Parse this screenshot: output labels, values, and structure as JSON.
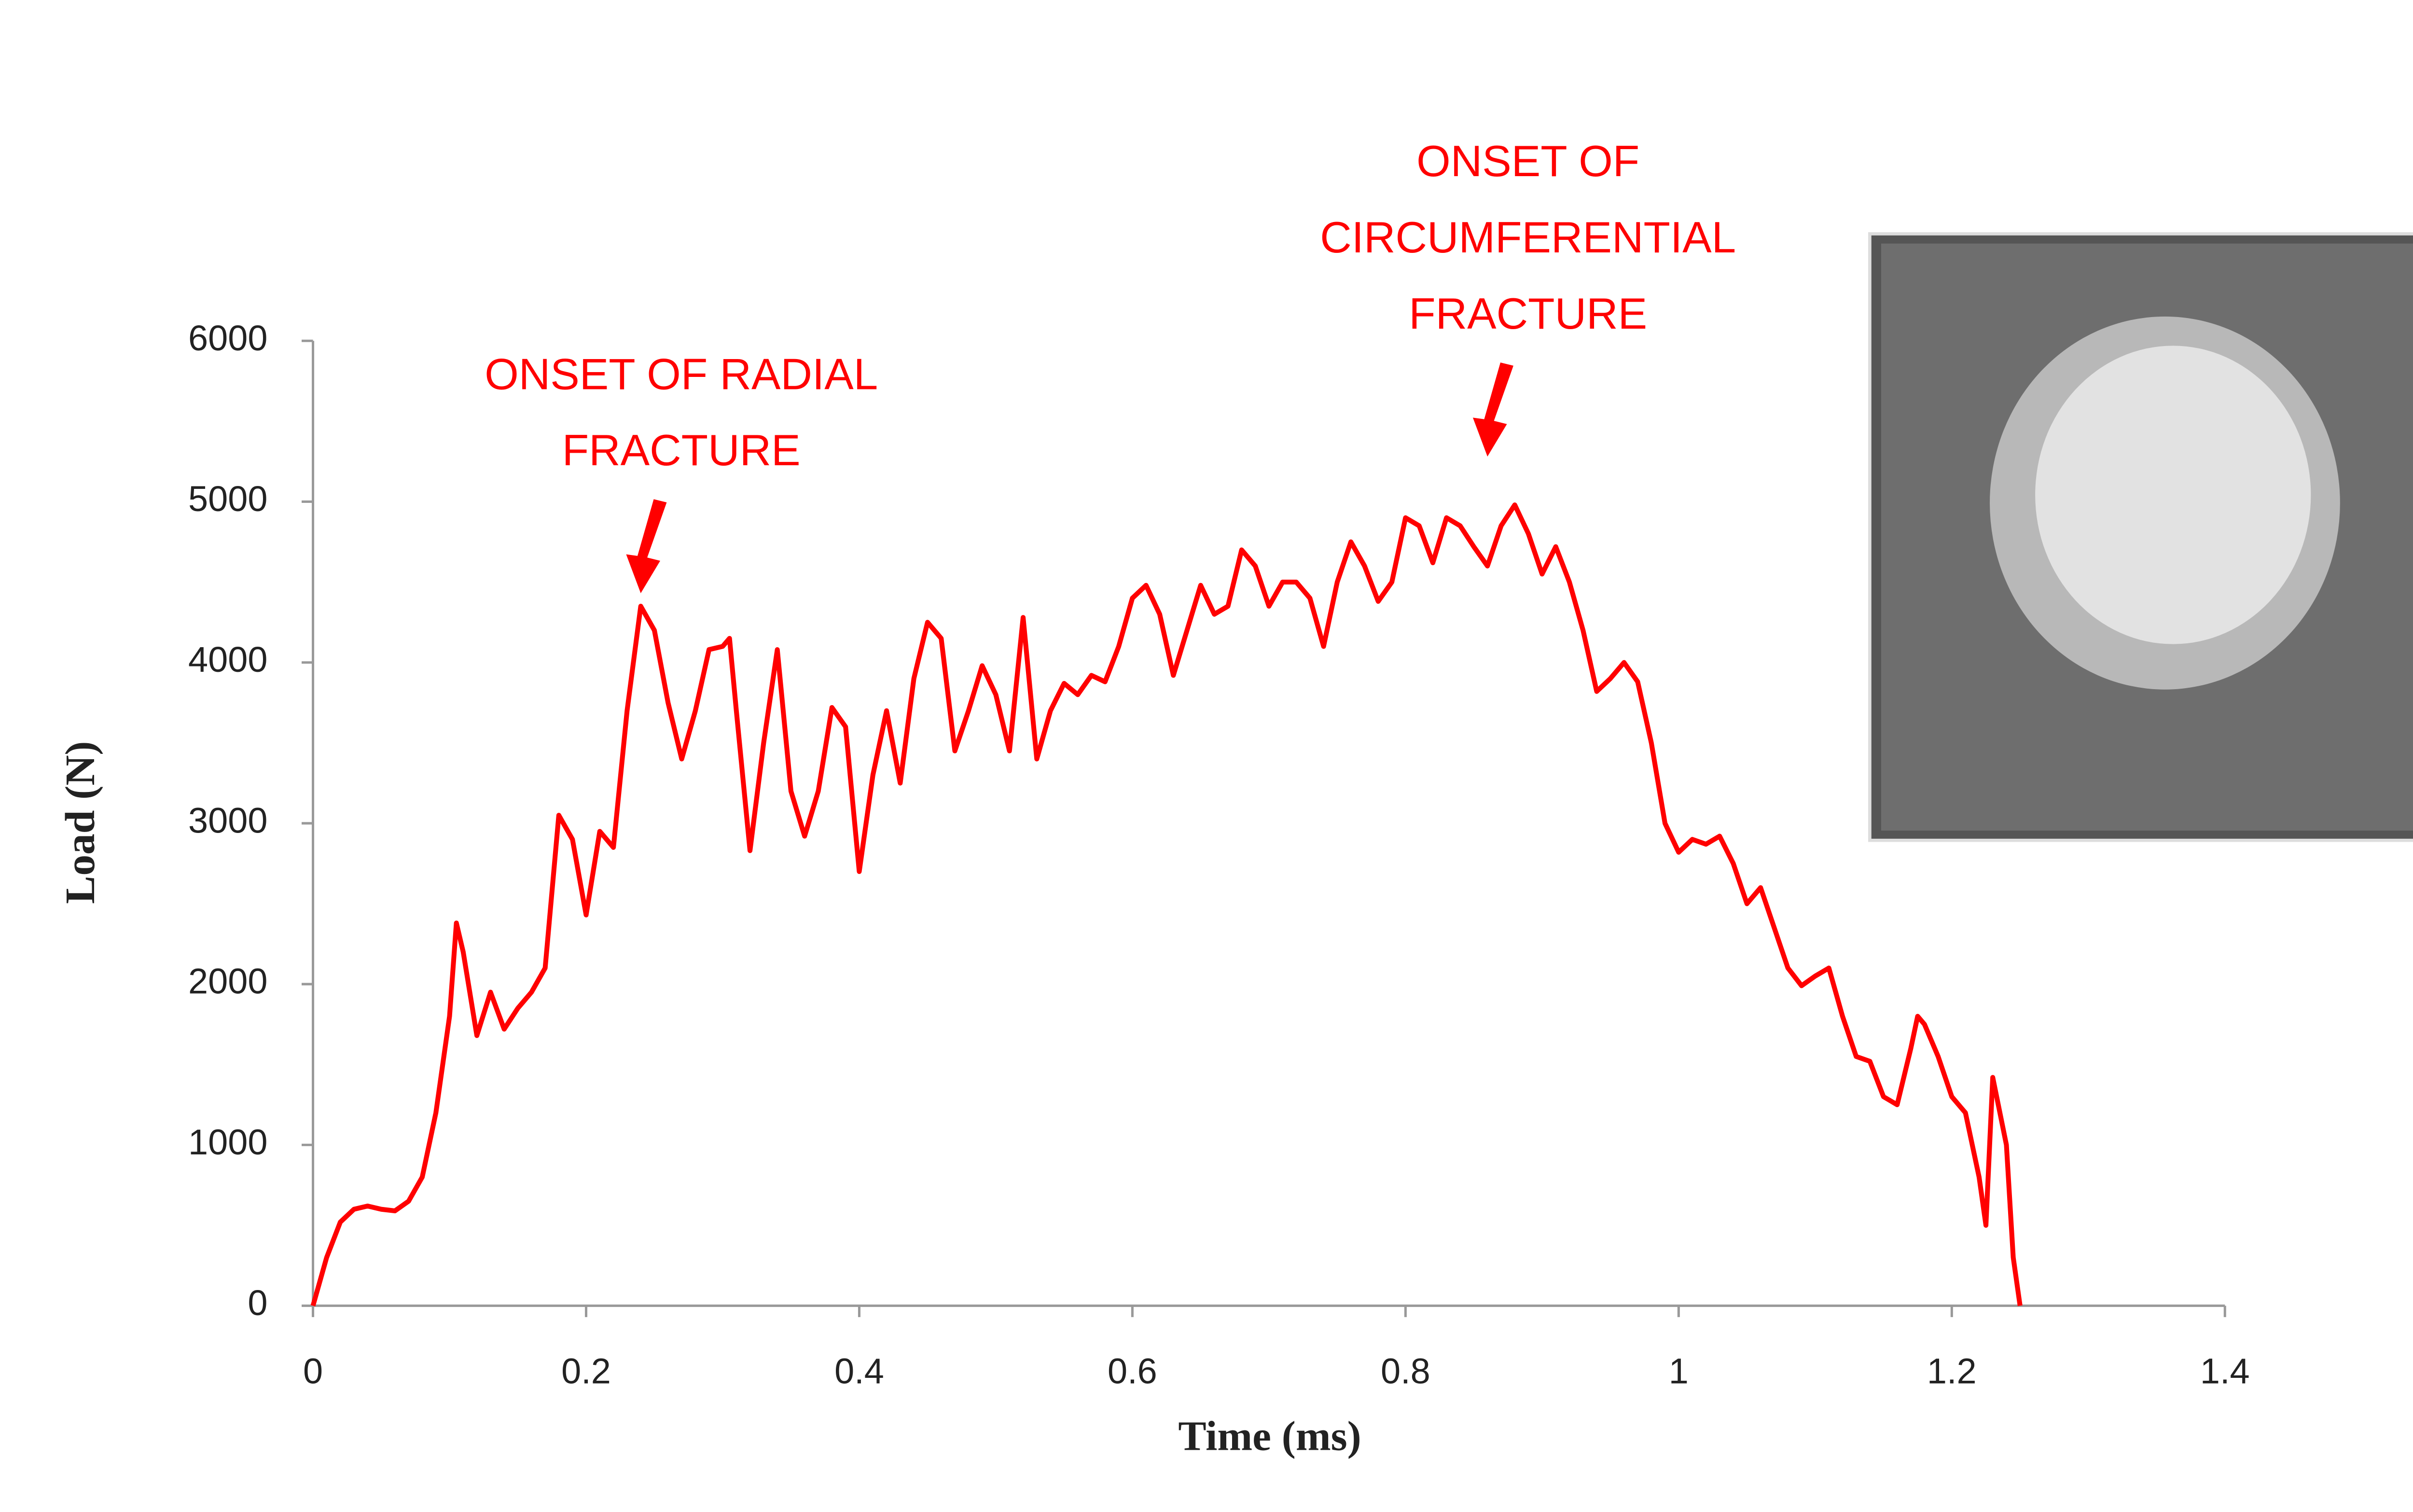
{
  "chart_data": {
    "type": "line",
    "xlabel": "Time (ms)",
    "ylabel": "Load (N)",
    "xlim": [
      0,
      1.4
    ],
    "xticks": [
      0,
      0.2,
      0.4,
      0.6,
      0.8,
      1,
      1.2,
      1.4
    ],
    "ylim": [
      0,
      6000
    ],
    "yticks": [
      0,
      1000,
      2000,
      3000,
      4000,
      5000,
      6000
    ],
    "grid": false,
    "annotations": [
      {
        "lines": [
          "ONSET OF RADIAL",
          "FRACTURE"
        ],
        "x": 0.24,
        "y": 4350
      },
      {
        "lines": [
          "ONSET OF",
          "CIRCUMFERENTIAL",
          "FRACTURE"
        ],
        "x": 0.86,
        "y": 5200
      }
    ],
    "series": [
      {
        "color": "#ff0000",
        "x": [
          0,
          0.01,
          0.02,
          0.03,
          0.04,
          0.05,
          0.06,
          0.07,
          0.08,
          0.09,
          0.1,
          0.105,
          0.11,
          0.12,
          0.13,
          0.14,
          0.15,
          0.16,
          0.17,
          0.18,
          0.19,
          0.2,
          0.21,
          0.22,
          0.23,
          0.24,
          0.25,
          0.26,
          0.27,
          0.28,
          0.29,
          0.3,
          0.305,
          0.31,
          0.32,
          0.33,
          0.34,
          0.35,
          0.36,
          0.37,
          0.38,
          0.39,
          0.4,
          0.41,
          0.42,
          0.43,
          0.44,
          0.45,
          0.46,
          0.47,
          0.48,
          0.49,
          0.5,
          0.51,
          0.52,
          0.53,
          0.54,
          0.55,
          0.56,
          0.57,
          0.58,
          0.59,
          0.6,
          0.61,
          0.62,
          0.63,
          0.64,
          0.65,
          0.66,
          0.67,
          0.68,
          0.69,
          0.7,
          0.71,
          0.72,
          0.73,
          0.74,
          0.75,
          0.76,
          0.77,
          0.78,
          0.79,
          0.8,
          0.81,
          0.82,
          0.83,
          0.84,
          0.85,
          0.86,
          0.87,
          0.88,
          0.89,
          0.9,
          0.91,
          0.92,
          0.93,
          0.94,
          0.95,
          0.96,
          0.97,
          0.98,
          0.99,
          1.0,
          1.01,
          1.02,
          1.03,
          1.04,
          1.05,
          1.06,
          1.07,
          1.08,
          1.09,
          1.1,
          1.11,
          1.12,
          1.13,
          1.14,
          1.15,
          1.16,
          1.17,
          1.175,
          1.18,
          1.19,
          1.2,
          1.21,
          1.22,
          1.225,
          1.23,
          1.24,
          1.245,
          1.25
        ],
        "values": [
          0,
          300,
          520,
          600,
          620,
          600,
          590,
          650,
          800,
          1200,
          1800,
          2380,
          2200,
          1680,
          1950,
          1720,
          1850,
          1950,
          2100,
          3050,
          2900,
          2430,
          2950,
          2850,
          3700,
          4350,
          4200,
          3750,
          3400,
          3700,
          4080,
          4100,
          4150,
          3700,
          2830,
          3500,
          4080,
          3200,
          2920,
          3200,
          3720,
          3600,
          2700,
          3300,
          3700,
          3250,
          3900,
          4250,
          4150,
          3450,
          3700,
          3980,
          3800,
          3450,
          4280,
          3400,
          3700,
          3870,
          3800,
          3920,
          3880,
          4100,
          4400,
          4480,
          4300,
          3920,
          4200,
          4480,
          4300,
          4350,
          4700,
          4600,
          4350,
          4500,
          4500,
          4400,
          4100,
          4500,
          4750,
          4600,
          4380,
          4500,
          4900,
          4850,
          4620,
          4900,
          4850,
          4720,
          4600,
          4850,
          4980,
          4800,
          4550,
          4720,
          4500,
          4200,
          3820,
          3900,
          4000,
          3880,
          3500,
          3000,
          2820,
          2900,
          2870,
          2920,
          2750,
          2500,
          2600,
          2350,
          2100,
          1990,
          2050,
          2100,
          1800,
          1550,
          1520,
          1300,
          1250,
          1600,
          1800,
          1750,
          1550,
          1300,
          1200,
          800,
          500,
          1420,
          1000,
          300,
          0
        ]
      }
    ]
  }
}
